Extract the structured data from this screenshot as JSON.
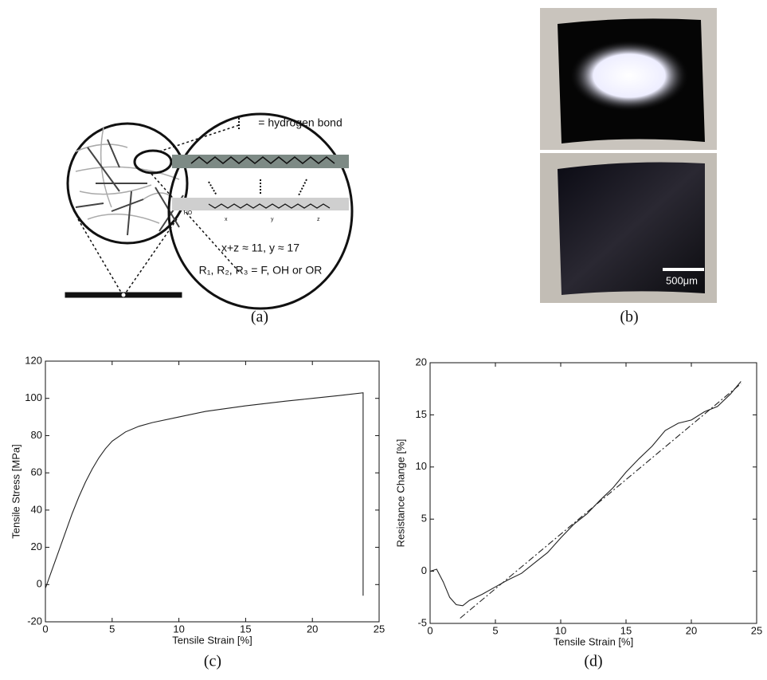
{
  "figure": {
    "panel_labels": [
      "(a)",
      "(b)",
      "(c)",
      "(d)"
    ],
    "diagram": {
      "legend": "= hydrogen bond",
      "end_group": "HO",
      "repeat_indices": [
        "x",
        "y",
        "z"
      ],
      "formula": "x+z ≈ 11, y ≈ 17",
      "substituents": "R₁, R₂, R₃ = F, OH or OR"
    },
    "scale_bar": "500μm"
  },
  "chart_data": [
    {
      "type": "line",
      "xlabel": "Tensile Strain [%]",
      "ylabel": "Tensile Stress [MPa]",
      "xlim": [
        0,
        25
      ],
      "xticks": [
        0,
        5,
        10,
        15,
        20,
        25
      ],
      "ylim": [
        -20,
        120
      ],
      "yticks": [
        -20,
        0,
        20,
        40,
        60,
        80,
        100,
        120
      ],
      "series": [
        {
          "color": "#222222",
          "style": "solid",
          "x": [
            0,
            0.5,
            1,
            1.5,
            2,
            2.5,
            3,
            3.5,
            4,
            4.5,
            5,
            6,
            7,
            8,
            10,
            12,
            15,
            18,
            20,
            22,
            23.8,
            23.8
          ],
          "values": [
            -2,
            8,
            18,
            28,
            38,
            47,
            55,
            62,
            68,
            73,
            77,
            82,
            85,
            87,
            90,
            93,
            96,
            98.5,
            100,
            101.5,
            103,
            -6
          ]
        }
      ]
    },
    {
      "type": "line",
      "xlabel": "Tensile Strain [%]",
      "ylabel": "Resistance Change [%]",
      "xlim": [
        0,
        25
      ],
      "xticks": [
        0,
        5,
        10,
        15,
        20,
        25
      ],
      "ylim": [
        -5,
        20
      ],
      "yticks": [
        -5,
        0,
        5,
        10,
        15,
        20
      ],
      "series": [
        {
          "color": "#222222",
          "style": "solid",
          "x": [
            0,
            0.5,
            1,
            1.5,
            2,
            2.5,
            3,
            4,
            5,
            6,
            7,
            8,
            9,
            10,
            11,
            12,
            13,
            14,
            15,
            16,
            17,
            18,
            19,
            20,
            21,
            22,
            23,
            23.8
          ],
          "values": [
            0,
            0.2,
            -1,
            -2.5,
            -3.2,
            -3.3,
            -2.8,
            -2.2,
            -1.5,
            -0.8,
            -0.2,
            0.8,
            1.8,
            3.2,
            4.5,
            5.5,
            6.8,
            8,
            9.5,
            10.8,
            12,
            13.5,
            14.2,
            14.5,
            15.3,
            15.8,
            17,
            18.2
          ]
        },
        {
          "color": "#222222",
          "style": "dashdot",
          "x": [
            2.3,
            23.8
          ],
          "values": [
            -4.5,
            18
          ]
        }
      ]
    }
  ]
}
